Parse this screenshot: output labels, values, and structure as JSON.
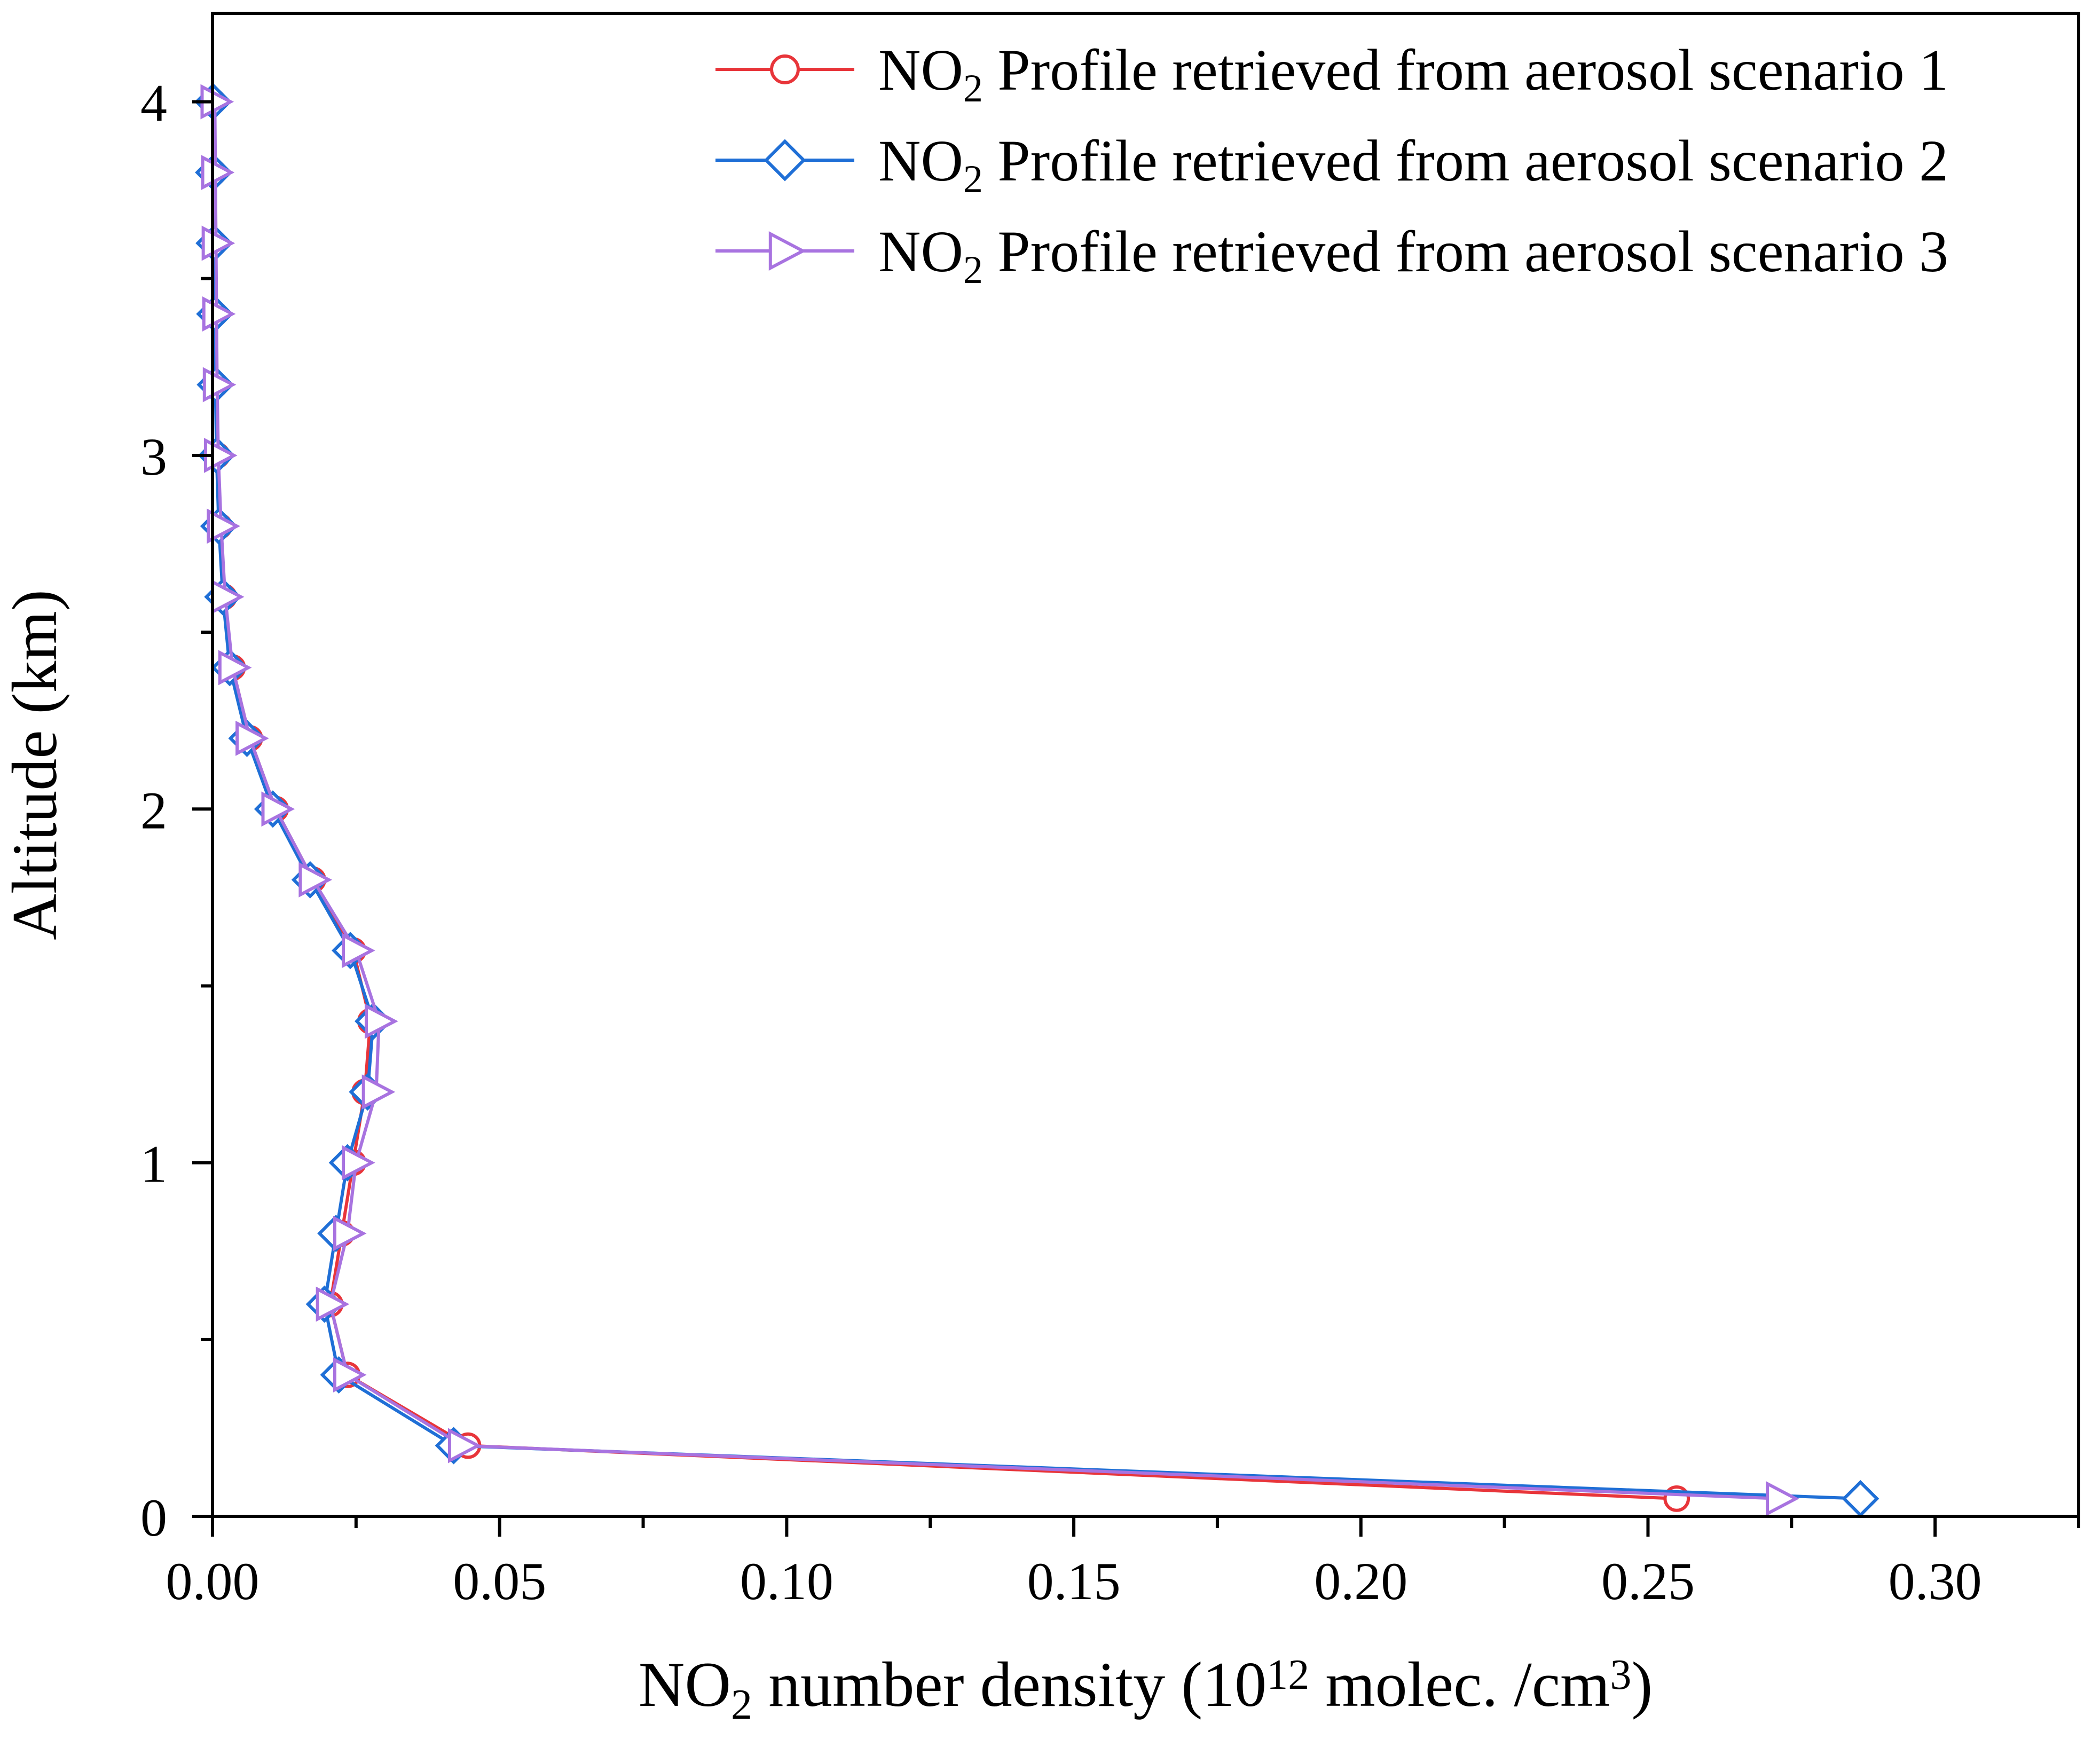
{
  "chart_data": {
    "type": "line",
    "title": "",
    "xlabel": {
      "main": "NO",
      "sub": "2",
      "mid": " number density (10",
      "sup": "12",
      "tail": " molec. /cm",
      "sup2": "3",
      "end": ")"
    },
    "ylabel": "Altitude (km)",
    "xlim": [
      0,
      0.325
    ],
    "ylim": [
      0,
      4.25
    ],
    "x_ticks": [
      0.0,
      0.05,
      0.1,
      0.15,
      0.2,
      0.25,
      0.3
    ],
    "x_tick_labels": [
      "0.00",
      "0.05",
      "0.10",
      "0.15",
      "0.20",
      "0.25",
      "0.30"
    ],
    "y_ticks": [
      0,
      1,
      2,
      3,
      4
    ],
    "y_tick_labels": [
      "0",
      "1",
      "2",
      "3",
      "4"
    ],
    "legend_position": "top-right",
    "series": [
      {
        "name": "NO2 Profile retrieved from aerosol scenario 1",
        "legend_label": {
          "pre": "NO",
          "sub": "2",
          "post": " Profile retrieved from aerosol scenario 1"
        },
        "color": "#e8353a",
        "marker": "circle",
        "points": [
          [
            0.255,
            0.05
          ],
          [
            0.0445,
            0.2
          ],
          [
            0.0235,
            0.4
          ],
          [
            0.0205,
            0.6
          ],
          [
            0.0225,
            0.8
          ],
          [
            0.0245,
            1.0
          ],
          [
            0.0265,
            1.2
          ],
          [
            0.0275,
            1.4
          ],
          [
            0.0245,
            1.6
          ],
          [
            0.0175,
            1.8
          ],
          [
            0.011,
            2.0
          ],
          [
            0.0065,
            2.2
          ],
          [
            0.0035,
            2.4
          ],
          [
            0.002,
            2.6
          ],
          [
            0.0012,
            2.8
          ],
          [
            0.0008,
            3.0
          ],
          [
            0.0005,
            3.2
          ],
          [
            0.0004,
            3.4
          ],
          [
            0.0003,
            3.6
          ],
          [
            0.0002,
            3.8
          ],
          [
            0.0001,
            4.0
          ]
        ]
      },
      {
        "name": "NO2 Profile retrieved from aerosol scenario 2",
        "legend_label": {
          "pre": "NO",
          "sub": "2",
          "post": " Profile retrieved from aerosol scenario 2"
        },
        "color": "#1f6fd6",
        "marker": "diamond",
        "points": [
          [
            0.287,
            0.05
          ],
          [
            0.042,
            0.2
          ],
          [
            0.022,
            0.4
          ],
          [
            0.0195,
            0.6
          ],
          [
            0.0215,
            0.8
          ],
          [
            0.0235,
            1.0
          ],
          [
            0.027,
            1.2
          ],
          [
            0.028,
            1.4
          ],
          [
            0.024,
            1.6
          ],
          [
            0.017,
            1.8
          ],
          [
            0.0105,
            2.0
          ],
          [
            0.006,
            2.2
          ],
          [
            0.003,
            2.4
          ],
          [
            0.0018,
            2.6
          ],
          [
            0.0011,
            2.8
          ],
          [
            0.0007,
            3.0
          ],
          [
            0.0005,
            3.2
          ],
          [
            0.0004,
            3.4
          ],
          [
            0.0003,
            3.6
          ],
          [
            0.0002,
            3.8
          ],
          [
            0.0001,
            4.0
          ]
        ]
      },
      {
        "name": "NO2 Profile retrieved from aerosol scenario 3",
        "legend_label": {
          "pre": "NO",
          "sub": "2",
          "post": " Profile retrieved from aerosol scenario 3"
        },
        "color": "#a873e0",
        "marker": "triangle-right",
        "points": [
          [
            0.273,
            0.05
          ],
          [
            0.0435,
            0.2
          ],
          [
            0.0235,
            0.4
          ],
          [
            0.0205,
            0.6
          ],
          [
            0.0235,
            0.8
          ],
          [
            0.025,
            1.0
          ],
          [
            0.0285,
            1.2
          ],
          [
            0.029,
            1.4
          ],
          [
            0.025,
            1.6
          ],
          [
            0.0175,
            1.8
          ],
          [
            0.011,
            2.0
          ],
          [
            0.0065,
            2.2
          ],
          [
            0.0035,
            2.4
          ],
          [
            0.0022,
            2.6
          ],
          [
            0.0015,
            2.8
          ],
          [
            0.001,
            3.0
          ],
          [
            0.0008,
            3.2
          ],
          [
            0.0007,
            3.4
          ],
          [
            0.0006,
            3.6
          ],
          [
            0.0005,
            3.8
          ],
          [
            0.0004,
            4.0
          ]
        ]
      }
    ]
  }
}
